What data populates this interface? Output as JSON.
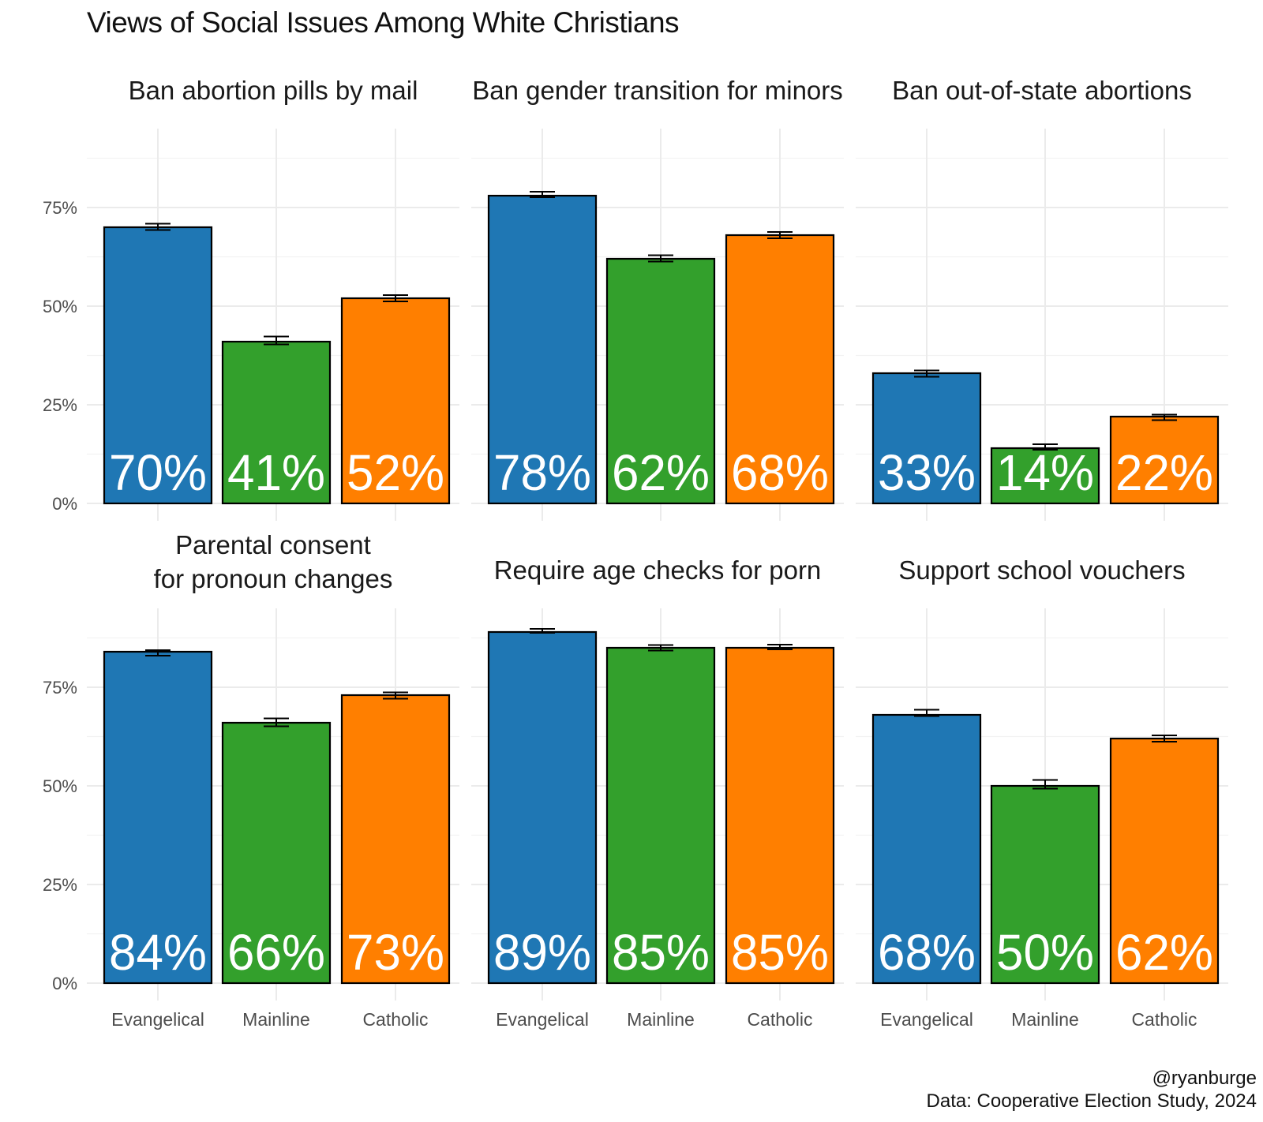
{
  "title": "Views of Social Issues Among White Christians",
  "caption": {
    "handle": "@ryanburge",
    "source": "Data: Cooperative Election Study, 2024"
  },
  "colors": {
    "Evangelical": "#1f77b4",
    "Mainline": "#33a02c",
    "Catholic": "#ff7f00",
    "bar_outline": "#000000",
    "grid": "#ebebeb"
  },
  "chart_data": {
    "type": "bar",
    "layout": "facet grid, 2 rows x 3 columns",
    "categories": [
      "Evangelical",
      "Mainline",
      "Catholic"
    ],
    "y_tick_labels": [
      "0%",
      "25%",
      "50%",
      "75%"
    ],
    "y_ticks": [
      0,
      25,
      50,
      75
    ],
    "ylim": [
      0,
      93
    ],
    "grid": true,
    "legend": "none",
    "facets": [
      {
        "title": [
          "Ban abortion pills by mail"
        ],
        "values": [
          70,
          41,
          52
        ],
        "labels": [
          "70%",
          "41%",
          "52%"
        ],
        "error": [
          [
            69.3,
            70.9
          ],
          [
            40.3,
            42.3
          ],
          [
            51.2,
            52.8
          ]
        ]
      },
      {
        "title": [
          "Ban gender transition for minors"
        ],
        "values": [
          78,
          62,
          68
        ],
        "labels": [
          "78%",
          "62%",
          "68%"
        ],
        "error": [
          [
            77.6,
            79.0
          ],
          [
            61.3,
            62.9
          ],
          [
            67.2,
            68.8
          ]
        ]
      },
      {
        "title": [
          "Ban out-of-state abortions"
        ],
        "values": [
          33,
          14,
          22
        ],
        "labels": [
          "33%",
          "14%",
          "22%"
        ],
        "error": [
          [
            32.1,
            33.7
          ],
          [
            13.6,
            15.0
          ],
          [
            21.1,
            22.5
          ]
        ]
      },
      {
        "title": [
          "Parental consent",
          "for pronoun changes"
        ],
        "values": [
          84,
          66,
          73
        ],
        "labels": [
          "84%",
          "66%",
          "73%"
        ],
        "error": [
          [
            83.0,
            84.4
          ],
          [
            65.1,
            67.1
          ],
          [
            72.1,
            73.7
          ]
        ]
      },
      {
        "title": [
          "Require age checks for porn"
        ],
        "values": [
          89,
          85,
          85
        ],
        "labels": [
          "89%",
          "85%",
          "85%"
        ],
        "error": [
          [
            88.8,
            89.8
          ],
          [
            84.3,
            85.7
          ],
          [
            84.6,
            85.8
          ]
        ]
      },
      {
        "title": [
          "Support school vouchers"
        ],
        "values": [
          68,
          50,
          62
        ],
        "labels": [
          "68%",
          "50%",
          "62%"
        ],
        "error": [
          [
            67.7,
            69.3
          ],
          [
            49.3,
            51.5
          ],
          [
            61.2,
            62.8
          ]
        ]
      }
    ]
  }
}
